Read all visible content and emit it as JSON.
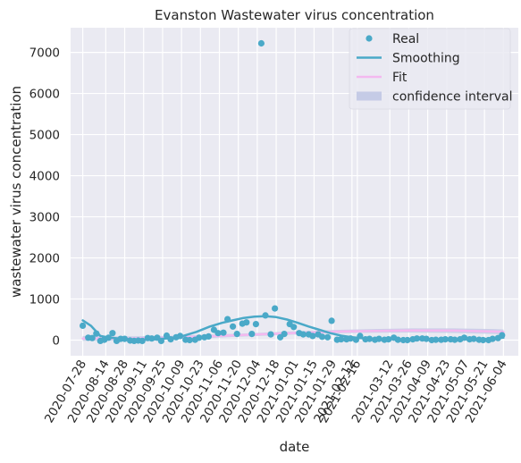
{
  "chart_data": {
    "type": "scatter",
    "title": "Evanston Wastewater virus concentration",
    "xlabel": "date",
    "ylabel": "wastewater virus concentration",
    "xlim": [
      "2020-07-19",
      "2021-06-15"
    ],
    "ylim": [
      -380,
      7600
    ],
    "yticks": [
      0,
      1000,
      2000,
      3000,
      4000,
      5000,
      6000,
      7000
    ],
    "xticks": [
      "2020-07-28",
      "2020-08-14",
      "2020-08-28",
      "2020-09-11",
      "2020-09-25",
      "2020-10-09",
      "2020-10-23",
      "2020-11-06",
      "2020-11-20",
      "2020-12-04",
      "2020-12-18",
      "2021-01-01",
      "2021-01-15",
      "2021-01-29",
      "2021-02-12",
      "2021-02-16",
      "2021-03-12",
      "2021-03-26",
      "2021-04-09",
      "2021-04-23",
      "2021-05-07",
      "2021-05-21",
      "2021-06-04"
    ],
    "grid": true,
    "legend_position": "top-right",
    "legend": [
      {
        "label": "Real",
        "kind": "marker",
        "color": "#4aa9c8"
      },
      {
        "label": "Smoothing",
        "kind": "line",
        "color": "#4aa9c8"
      },
      {
        "label": "Fit",
        "kind": "line",
        "color": "#f4b9ef"
      },
      {
        "label": "confidence interval",
        "kind": "patch",
        "color": "#c5cbe6"
      }
    ],
    "series": [
      {
        "name": "Real",
        "kind": "scatter",
        "color": "#4aa9c8",
        "points": [
          [
            "2020-07-28",
            350
          ],
          [
            "2020-08-01",
            60
          ],
          [
            "2020-08-04",
            50
          ],
          [
            "2020-08-07",
            160
          ],
          [
            "2020-08-10",
            -20
          ],
          [
            "2020-08-13",
            10
          ],
          [
            "2020-08-16",
            60
          ],
          [
            "2020-08-19",
            170
          ],
          [
            "2020-08-22",
            -20
          ],
          [
            "2020-08-25",
            30
          ],
          [
            "2020-08-28",
            30
          ],
          [
            "2020-09-01",
            -10
          ],
          [
            "2020-09-04",
            -20
          ],
          [
            "2020-09-07",
            -10
          ],
          [
            "2020-09-10",
            -20
          ],
          [
            "2020-09-14",
            50
          ],
          [
            "2020-09-17",
            40
          ],
          [
            "2020-09-21",
            60
          ],
          [
            "2020-09-24",
            -20
          ],
          [
            "2020-09-28",
            110
          ],
          [
            "2020-10-01",
            20
          ],
          [
            "2020-10-05",
            70
          ],
          [
            "2020-10-08",
            100
          ],
          [
            "2020-10-12",
            10
          ],
          [
            "2020-10-15",
            0
          ],
          [
            "2020-10-19",
            10
          ],
          [
            "2020-10-22",
            60
          ],
          [
            "2020-10-26",
            70
          ],
          [
            "2020-10-29",
            90
          ],
          [
            "2020-11-02",
            250
          ],
          [
            "2020-11-05",
            170
          ],
          [
            "2020-11-09",
            180
          ],
          [
            "2020-11-12",
            510
          ],
          [
            "2020-11-16",
            330
          ],
          [
            "2020-11-19",
            150
          ],
          [
            "2020-11-23",
            400
          ],
          [
            "2020-11-26",
            430
          ],
          [
            "2020-11-30",
            150
          ],
          [
            "2020-12-03",
            390
          ],
          [
            "2020-12-07",
            7220
          ],
          [
            "2020-12-10",
            600
          ],
          [
            "2020-12-14",
            140
          ],
          [
            "2020-12-17",
            770
          ],
          [
            "2020-12-21",
            70
          ],
          [
            "2020-12-24",
            150
          ],
          [
            "2020-12-28",
            390
          ],
          [
            "2020-12-31",
            320
          ],
          [
            "2021-01-04",
            170
          ],
          [
            "2021-01-07",
            140
          ],
          [
            "2021-01-11",
            140
          ],
          [
            "2021-01-14",
            100
          ],
          [
            "2021-01-18",
            140
          ],
          [
            "2021-01-21",
            80
          ],
          [
            "2021-01-25",
            70
          ],
          [
            "2021-01-28",
            470
          ],
          [
            "2021-02-01",
            10
          ],
          [
            "2021-02-04",
            20
          ],
          [
            "2021-02-08",
            20
          ],
          [
            "2021-02-11",
            40
          ],
          [
            "2021-02-15",
            10
          ],
          [
            "2021-02-18",
            100
          ],
          [
            "2021-02-22",
            20
          ],
          [
            "2021-02-25",
            30
          ],
          [
            "2021-03-01",
            10
          ],
          [
            "2021-03-04",
            30
          ],
          [
            "2021-03-08",
            10
          ],
          [
            "2021-03-11",
            20
          ],
          [
            "2021-03-15",
            60
          ],
          [
            "2021-03-18",
            10
          ],
          [
            "2021-03-22",
            0
          ],
          [
            "2021-03-25",
            0
          ],
          [
            "2021-03-29",
            20
          ],
          [
            "2021-04-01",
            40
          ],
          [
            "2021-04-05",
            40
          ],
          [
            "2021-04-08",
            30
          ],
          [
            "2021-04-12",
            0
          ],
          [
            "2021-04-15",
            10
          ],
          [
            "2021-04-19",
            10
          ],
          [
            "2021-04-22",
            20
          ],
          [
            "2021-04-26",
            20
          ],
          [
            "2021-04-29",
            10
          ],
          [
            "2021-05-03",
            20
          ],
          [
            "2021-05-06",
            60
          ],
          [
            "2021-05-10",
            20
          ],
          [
            "2021-05-13",
            30
          ],
          [
            "2021-05-17",
            10
          ],
          [
            "2021-05-20",
            0
          ],
          [
            "2021-05-24",
            0
          ],
          [
            "2021-05-27",
            30
          ],
          [
            "2021-05-31",
            50
          ],
          [
            "2021-06-03",
            120
          ]
        ]
      },
      {
        "name": "Smoothing",
        "kind": "line",
        "color": "#4aa9c8",
        "points": [
          [
            "2020-07-28",
            480
          ],
          [
            "2020-08-03",
            350
          ],
          [
            "2020-08-10",
            100
          ],
          [
            "2020-08-17",
            60
          ],
          [
            "2020-08-24",
            40
          ],
          [
            "2020-09-01",
            20
          ],
          [
            "2020-09-10",
            10
          ],
          [
            "2020-09-20",
            20
          ],
          [
            "2020-10-01",
            50
          ],
          [
            "2020-10-10",
            100
          ],
          [
            "2020-10-20",
            200
          ],
          [
            "2020-10-30",
            330
          ],
          [
            "2020-11-08",
            420
          ],
          [
            "2020-11-16",
            480
          ],
          [
            "2020-11-24",
            540
          ],
          [
            "2020-12-02",
            570
          ],
          [
            "2020-12-10",
            580
          ],
          [
            "2020-12-18",
            560
          ],
          [
            "2020-12-26",
            500
          ],
          [
            "2021-01-03",
            420
          ],
          [
            "2021-01-11",
            330
          ],
          [
            "2021-01-19",
            250
          ],
          [
            "2021-01-27",
            170
          ],
          [
            "2021-02-04",
            110
          ],
          [
            "2021-02-12",
            70
          ],
          [
            "2021-02-22",
            40
          ],
          [
            "2021-03-05",
            30
          ],
          [
            "2021-03-20",
            20
          ],
          [
            "2021-04-05",
            20
          ],
          [
            "2021-04-20",
            15
          ],
          [
            "2021-05-05",
            20
          ],
          [
            "2021-05-20",
            25
          ],
          [
            "2021-06-04",
            60
          ]
        ]
      },
      {
        "name": "Fit",
        "kind": "line",
        "color": "#f4b9ef",
        "points": [
          [
            "2020-07-28",
            40
          ],
          [
            "2020-08-28",
            40
          ],
          [
            "2020-09-28",
            60
          ],
          [
            "2020-10-28",
            90
          ],
          [
            "2020-11-28",
            130
          ],
          [
            "2020-12-28",
            170
          ],
          [
            "2021-01-28",
            205
          ],
          [
            "2021-02-28",
            225
          ],
          [
            "2021-03-28",
            235
          ],
          [
            "2021-04-28",
            230
          ],
          [
            "2021-05-28",
            210
          ],
          [
            "2021-06-04",
            200
          ]
        ]
      },
      {
        "name": "confidence interval",
        "kind": "band",
        "color": "#c5cbe6",
        "points": [
          [
            "2020-07-28",
            -20,
            100
          ],
          [
            "2020-08-28",
            -10,
            90
          ],
          [
            "2020-09-28",
            15,
            105
          ],
          [
            "2020-10-28",
            50,
            130
          ],
          [
            "2020-11-28",
            95,
            165
          ],
          [
            "2020-12-28",
            130,
            210
          ],
          [
            "2021-01-28",
            165,
            245
          ],
          [
            "2021-02-28",
            180,
            270
          ],
          [
            "2021-03-28",
            185,
            285
          ],
          [
            "2021-04-28",
            175,
            285
          ],
          [
            "2021-05-28",
            150,
            270
          ],
          [
            "2021-06-04",
            140,
            260
          ]
        ]
      }
    ]
  }
}
